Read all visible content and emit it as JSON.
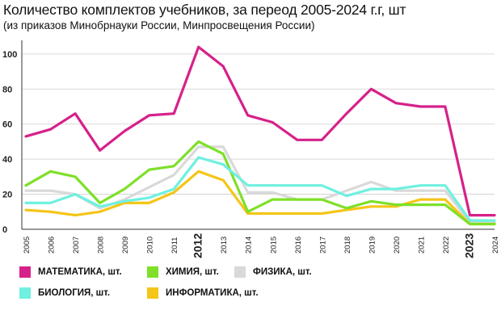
{
  "chart_data": {
    "type": "line",
    "title": "Количество комплектов учебников, за переод  2005-2024 г.г, шт",
    "subtitle": "(из приказов Минобрнауки России, Минпросвещения России)",
    "categories": [
      "2005",
      "2006",
      "2007",
      "2008",
      "2009",
      "2010",
      "2011",
      "2012",
      "2013",
      "2014",
      "2015",
      "2016",
      "2017",
      "2018",
      "2019",
      "2020",
      "2021",
      "2022",
      "2023",
      "2024"
    ],
    "bold_categories": [
      "2012",
      "2023"
    ],
    "yticks": [
      0,
      20,
      40,
      60,
      80,
      100
    ],
    "ytick_labels": [
      "0",
      "20",
      "40",
      "60",
      "80",
      "100"
    ],
    "ylim": [
      0,
      105
    ],
    "grid": "horizontal",
    "series": [
      {
        "name": "ФИЗИКА, шт.",
        "color": "#d9d9d9",
        "values": [
          22,
          22,
          20,
          12,
          17,
          24,
          31,
          47,
          47,
          21,
          21,
          17,
          17,
          22,
          27,
          22,
          22,
          22,
          4,
          4
        ]
      },
      {
        "name": "ИНФОРМАТИКА, шт.",
        "color": "#f5c518",
        "values": [
          11,
          10,
          8,
          10,
          15,
          15,
          21,
          33,
          28,
          9,
          9,
          9,
          9,
          11,
          13,
          13,
          17,
          17,
          3,
          3
        ]
      },
      {
        "name": "ХИМИЯ, шт.",
        "color": "#7ee028",
        "values": [
          25,
          33,
          30,
          15,
          23,
          34,
          36,
          50,
          43,
          10,
          17,
          17,
          17,
          12,
          16,
          14,
          14,
          14,
          3,
          3
        ]
      },
      {
        "name": "БИОЛОГИЯ, шт.",
        "color": "#6ff0e0",
        "values": [
          15,
          15,
          20,
          13,
          16,
          18,
          23,
          41,
          37,
          25,
          25,
          25,
          25,
          19,
          23,
          23,
          25,
          25,
          5,
          5
        ]
      },
      {
        "name": "МАТЕМАТИКА, шт.",
        "color": "#d6218a",
        "values": [
          53,
          57,
          66,
          45,
          56,
          65,
          66,
          104,
          93,
          65,
          61,
          51,
          51,
          66,
          80,
          72,
          70,
          70,
          8,
          8
        ]
      }
    ],
    "legend": [
      {
        "name": "МАТЕМАТИКА, шт.",
        "color": "#d6218a"
      },
      {
        "name": "ХИМИЯ, шт.",
        "color": "#7ee028"
      },
      {
        "name": "ФИЗИКА, шт.",
        "color": "#d9d9d9"
      },
      {
        "name": "БИОЛОГИЯ, шт.",
        "color": "#6ff0e0"
      },
      {
        "name": "ИНФОРМАТИКА, шт.",
        "color": "#f5c518"
      }
    ],
    "legend_placement": "bottom-left"
  }
}
